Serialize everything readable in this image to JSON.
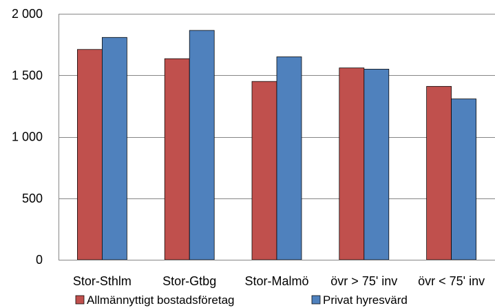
{
  "chart_data": {
    "type": "bar",
    "title": "",
    "xlabel": "",
    "ylabel": "",
    "categories": [
      "Stor-Sthlm",
      "Stor-Gtbg",
      "Stor-Malmö",
      "övr > 75' inv",
      "övr < 75' inv"
    ],
    "series": [
      {
        "name": "Allmännyttigt bostadsföretag",
        "color": "#c0504d",
        "values": [
          1710,
          1635,
          1450,
          1560,
          1410
        ]
      },
      {
        "name": "Privat hyresvärd",
        "color": "#4f81bd",
        "values": [
          1808,
          1865,
          1650,
          1550,
          1308
        ]
      }
    ],
    "ylim": [
      0,
      2000
    ],
    "yticks": [
      0,
      500,
      1000,
      1500,
      2000
    ],
    "ytick_labels": [
      "0",
      "500",
      "1 000",
      "1 500",
      "2 000"
    ],
    "grid": true,
    "legend_position": "bottom"
  }
}
